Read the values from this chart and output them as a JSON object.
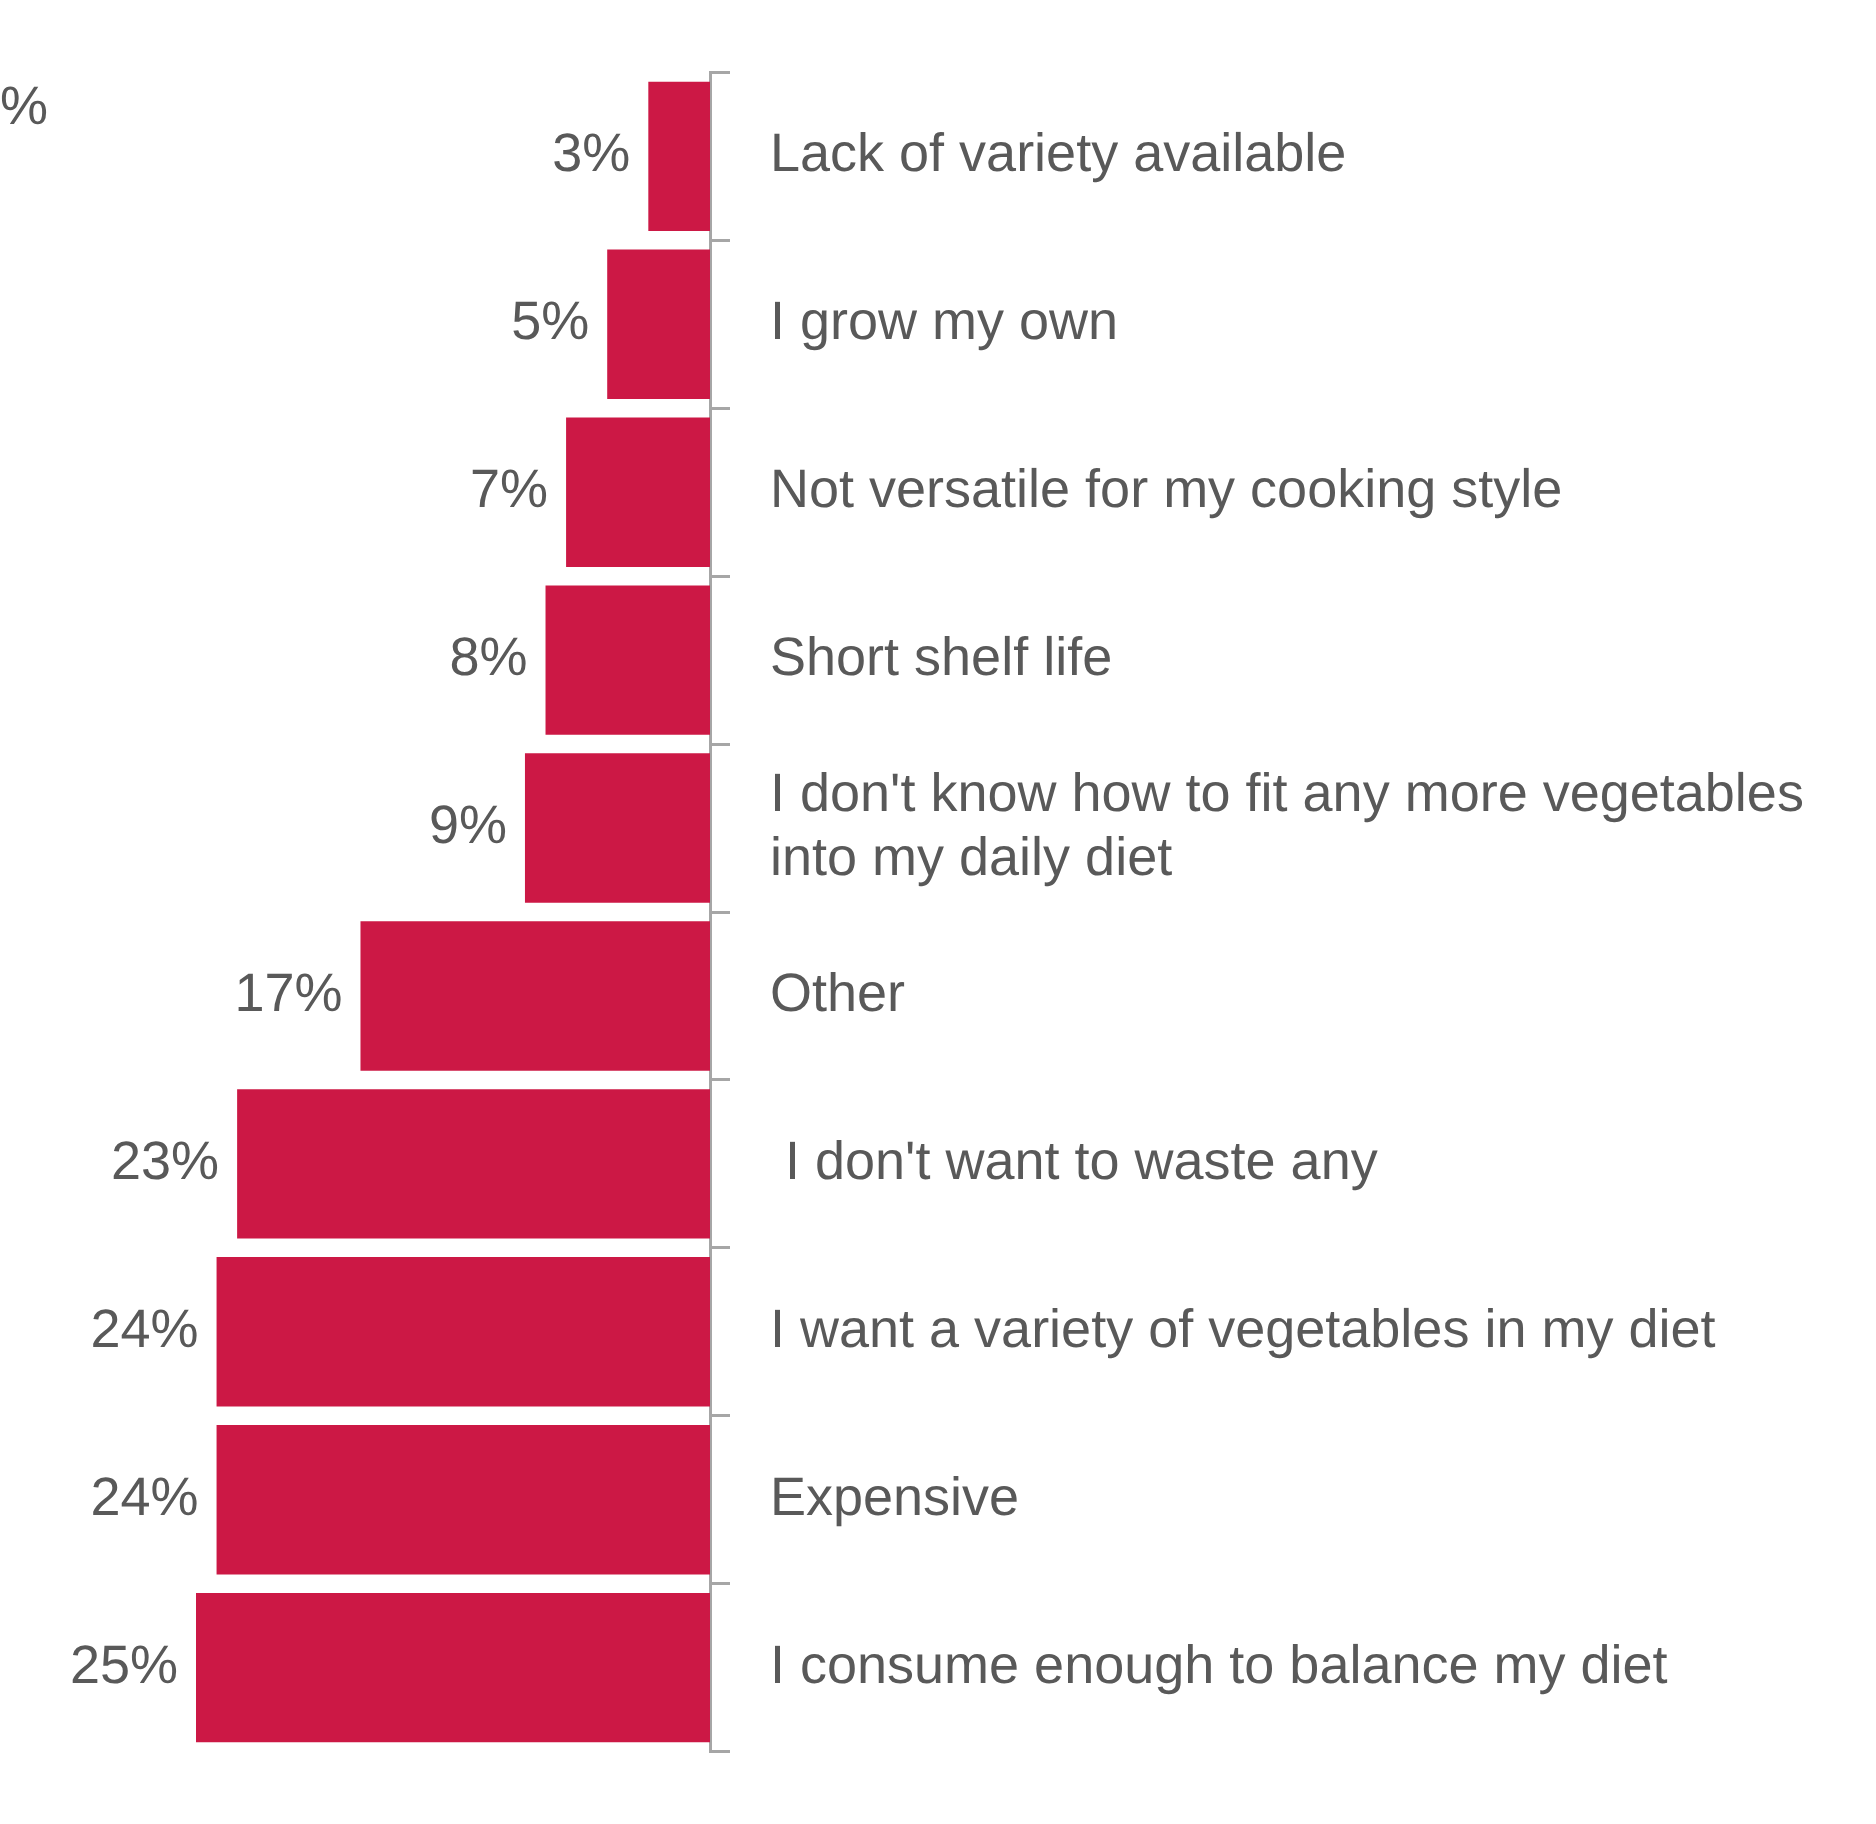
{
  "chart_data": {
    "type": "bar",
    "orientation": "horizontal",
    "categories": [
      "Lack of variety available",
      "I grow my own",
      "Not versatile for my cooking style",
      "Short shelf life",
      "I don't know how to fit any more vegetables into my daily diet",
      "Other",
      " I don't want to waste any",
      "I want a variety of vegetables in my diet",
      "Expensive",
      "I consume enough to balance my diet"
    ],
    "values": [
      3,
      5,
      7,
      8,
      9,
      17,
      23,
      24,
      24,
      25
    ],
    "value_labels": [
      "3%",
      "5%",
      "7%",
      "8%",
      "9%",
      "17%",
      "23%",
      "24%",
      "24%",
      "25%"
    ],
    "color": "#cc1845",
    "xlim": [
      25,
      0
    ],
    "tick_labels": "y",
    "grid": false,
    "legend": false,
    "annotations": [
      "%"
    ]
  }
}
